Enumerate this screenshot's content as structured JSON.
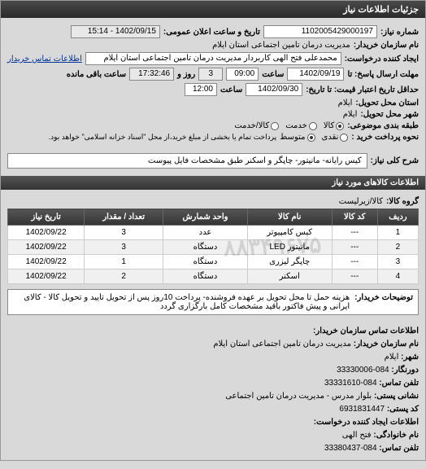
{
  "header": "جزئیات اطلاعات نیاز",
  "fields": {
    "req_no_label": "شماره نیاز:",
    "req_no": "1102005429000197",
    "announce_label": "تاریخ و ساعت اعلان عمومی:",
    "announce": "1402/09/15 - 15:14",
    "buyer_name_label": "نام سازمان خریدار:",
    "buyer_name": "مدیریت درمان تامین اجتماعی استان ایلام",
    "creator_label": "ایجاد کننده درخواست:",
    "creator": "محمدعلی فتح الهی کاربردار مدیریت درمان تامین اجتماعی استان ایلام",
    "contact_link": "اطلاعات تماس خریدار",
    "deadline_send_label": "مهلت ارسال پاسخ: تا",
    "deadline_send_date": "1402/09/19",
    "time_label": "ساعت",
    "deadline_send_time": "09:00",
    "days_label": "روز و",
    "days_remain": "3",
    "time_remain": "17:32:46",
    "remain_suffix": "ساعت باقی مانده",
    "validity_label": "حداقل تاریخ اعتبار قیمت: تا تاریخ:",
    "validity_date": "1402/09/30",
    "validity_time": "12:00",
    "delivery_state_label": "استان محل تحویل:",
    "delivery_state": "ایلام",
    "delivery_city_label": "شهر محل تحویل:",
    "delivery_city": "ایلام",
    "topic_group_label": "طبقه بندی موضوعی:",
    "radio_goods": "کالا",
    "radio_service": "خدمت",
    "radio_both": "کالا/خدمت",
    "payment_label": "نحوه پرداخت خرید :",
    "radio_cash": "نقدی",
    "radio_medium": "متوسط",
    "payment_note": "پرداخت تمام یا بخشی از مبلغ خرید،از محل \"اسناد خزانه اسلامی\" خواهد بود.",
    "need_title_label": "شرح کلی نیاز:",
    "need_title": "کیس رایانه- مانیتور- چاپگر و اسکنر طبق مشخصات فایل پیوست",
    "items_header": "اطلاعات کالاهای مورد نیاز",
    "goods_group_label": "گروه کالا:",
    "goods_group": "کالا/زیرلیست",
    "notes_label": "توضیحات خریدار:",
    "notes": "هزینه حمل تا محل تحویل بر عهده فروشنده- پرداخت 10روز پس از تحویل تایید و تحویل کالا - کالای ایرانی و پیش فاکتور باقید مشخصات کامل بارگزاری گردد"
  },
  "table": {
    "columns": [
      "ردیف",
      "کد کالا",
      "نام کالا",
      "واحد شمارش",
      "تعداد / مقدار",
      "تاریخ نیاز"
    ],
    "rows": [
      [
        "1",
        "---",
        "کیس کامپیوتر",
        "عدد",
        "3",
        "1402/09/22"
      ],
      [
        "2",
        "---",
        "مانیتور LED",
        "دستگاه",
        "3",
        "1402/09/22"
      ],
      [
        "3",
        "---",
        "چاپگر لیزری",
        "دستگاه",
        "1",
        "1402/09/22"
      ],
      [
        "4",
        "---",
        "اسکنر",
        "دستگاه",
        "2",
        "1402/09/22"
      ]
    ]
  },
  "contact": {
    "header": "اطلاعات تماس سازمان خریدار:",
    "org_label": "نام سازمان خریدار:",
    "org": "مدیریت درمان تامین اجتماعی استان ایلام",
    "city_label": "شهر:",
    "city": "ایلام",
    "precode_label": "دورنگار:",
    "precode": "084-33330006",
    "phone_label": "تلفن تماس:",
    "phone": "084-33331610",
    "addr_label": "نشانی پستی:",
    "addr": "بلوار مدرس - مدیریت درمان تامین اجتماعی",
    "postal_label": "کد پستی:",
    "postal": "6931831447",
    "creator_header": "اطلاعات ایجاد کننده درخواست:",
    "family_label": "نام خانوادگی:",
    "family": "فتح الهی",
    "cphone_label": "تلفن تماس:",
    "cphone": "084-33380437"
  },
  "watermark": "۸۸۳۴۹۶۷۵"
}
